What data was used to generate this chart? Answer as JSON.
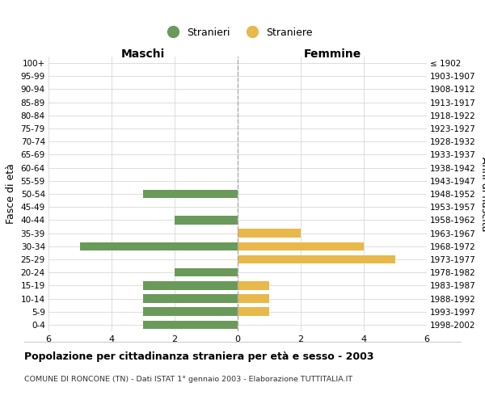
{
  "age_groups": [
    "100+",
    "95-99",
    "90-94",
    "85-89",
    "80-84",
    "75-79",
    "70-74",
    "65-69",
    "60-64",
    "55-59",
    "50-54",
    "45-49",
    "40-44",
    "35-39",
    "30-34",
    "25-29",
    "20-24",
    "15-19",
    "10-14",
    "5-9",
    "0-4"
  ],
  "birth_years": [
    "≤ 1902",
    "1903-1907",
    "1908-1912",
    "1913-1917",
    "1918-1922",
    "1923-1927",
    "1928-1932",
    "1933-1937",
    "1938-1942",
    "1943-1947",
    "1948-1952",
    "1953-1957",
    "1958-1962",
    "1963-1967",
    "1968-1972",
    "1973-1977",
    "1978-1982",
    "1983-1987",
    "1988-1992",
    "1993-1997",
    "1998-2002"
  ],
  "males": [
    0,
    0,
    0,
    0,
    0,
    0,
    0,
    0,
    0,
    0,
    3,
    0,
    2,
    0,
    5,
    0,
    2,
    3,
    3,
    3,
    3
  ],
  "females": [
    0,
    0,
    0,
    0,
    0,
    0,
    0,
    0,
    0,
    0,
    0,
    0,
    0,
    2,
    4,
    5,
    0,
    1,
    1,
    1,
    0
  ],
  "male_color": "#6a9a5a",
  "female_color": "#e8b84b",
  "title": "Popolazione per cittadinanza straniera per età e sesso - 2003",
  "subtitle": "COMUNE DI RONCONE (TN) - Dati ISTAT 1° gennaio 2003 - Elaborazione TUTTITALIA.IT",
  "ylabel_left": "Fasce di età",
  "ylabel_right": "Anni di nascita",
  "label_maschi": "Maschi",
  "label_femmine": "Femmine",
  "legend_males": "Stranieri",
  "legend_females": "Straniere",
  "xlim": 6,
  "background_color": "#ffffff",
  "grid_color": "#d0d0d0"
}
